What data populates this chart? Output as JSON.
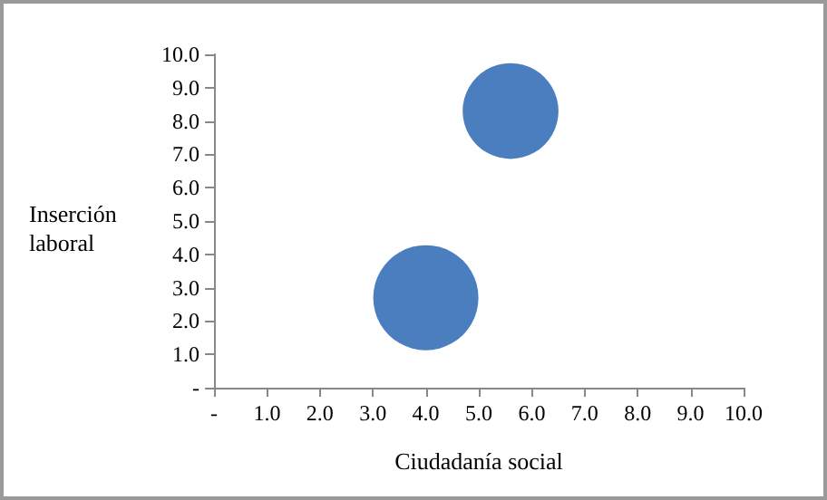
{
  "chart_data": {
    "type": "bubble",
    "xlabel": "Ciudadanía social",
    "ylabel": "Inserción laboral",
    "x": [
      5.6,
      4.0
    ],
    "values": [
      8.3,
      2.7
    ],
    "sizes": [
      0.83,
      1
    ],
    "color": "#4a7ebf",
    "xlim": [
      0,
      10
    ],
    "ylim": [
      0,
      10
    ],
    "xticks": [
      {
        "value": 0,
        "label": "-"
      },
      {
        "value": 1,
        "label": "1.0"
      },
      {
        "value": 2,
        "label": "2.0"
      },
      {
        "value": 3,
        "label": "3.0"
      },
      {
        "value": 4,
        "label": "4.0"
      },
      {
        "value": 5,
        "label": "5.0"
      },
      {
        "value": 6,
        "label": "6.0"
      },
      {
        "value": 7,
        "label": "7.0"
      },
      {
        "value": 8,
        "label": "8.0"
      },
      {
        "value": 9,
        "label": "9.0"
      },
      {
        "value": 10,
        "label": "10.0"
      }
    ],
    "yticks": [
      {
        "value": 0,
        "label": "-"
      },
      {
        "value": 1,
        "label": "1.0"
      },
      {
        "value": 2,
        "label": "2.0"
      },
      {
        "value": 3,
        "label": "3.0"
      },
      {
        "value": 4,
        "label": "4.0"
      },
      {
        "value": 5,
        "label": "5.0"
      },
      {
        "value": 6,
        "label": "6.0"
      },
      {
        "value": 7,
        "label": "7.0"
      },
      {
        "value": 8,
        "label": "8.0"
      },
      {
        "value": 9,
        "label": "9.0"
      },
      {
        "value": 10,
        "label": "10.0"
      }
    ],
    "grid": false
  }
}
